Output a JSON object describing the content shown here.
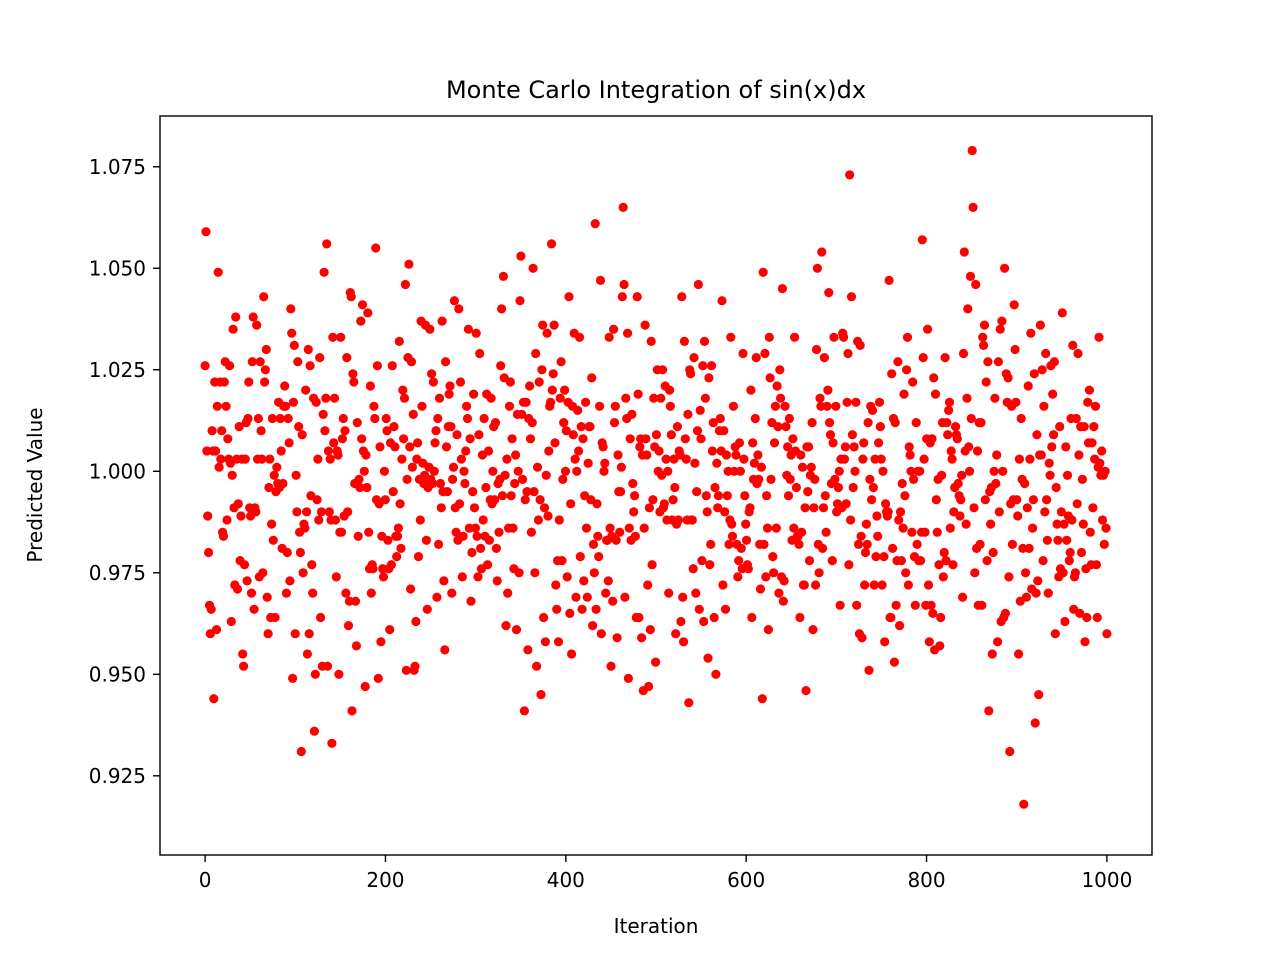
{
  "chart_data": {
    "type": "scatter",
    "title": "Monte Carlo Integration of sin(x)dx",
    "xlabel": "Iteration",
    "ylabel": "Predicted Value",
    "xlim": [
      -50,
      1050
    ],
    "ylim": [
      0.9055,
      1.0875
    ],
    "xticks": [
      0,
      200,
      400,
      600,
      800,
      1000
    ],
    "yticks": [
      0.925,
      0.95,
      0.975,
      1.0,
      1.025,
      1.05,
      1.075
    ],
    "xtick_labels": [
      "0",
      "200",
      "400",
      "600",
      "800",
      "1000"
    ],
    "ytick_labels": [
      "0.925",
      "0.950",
      "0.975",
      "1.000",
      "1.025",
      "1.050",
      "1.075"
    ],
    "grid": false,
    "legend": "none",
    "marker_color": "#ff0000",
    "series": [
      {
        "values": [
          1.026,
          1.059,
          1.005,
          0.989,
          0.98,
          0.967,
          0.96,
          0.966,
          1.01,
          1.005,
          0.944,
          1.022,
          1.005,
          0.961,
          1.016,
          1.049,
          1.001,
          1.022,
          1.003,
          1.01,
          0.985,
          0.984,
          1.022,
          1.027,
          1.016,
          0.988,
          1.008,
          1.003,
          1.026,
          1.002,
          0.963,
          0.999,
          1.035,
          0.991,
          0.972,
          1.038,
          1.003,
          0.971,
          0.992,
          1.011,
          0.978,
          0.989,
          1.003,
          0.955,
          0.952,
          0.977,
          1.003,
          1.012,
          0.973,
          1.013,
          1.022,
          0.991,
          0.989,
          0.97,
          1.027,
          1.038,
          0.966,
          0.991,
          0.99,
          1.036,
          1.003,
          1.013,
          0.974,
          1.027,
          1.01,
          1.003,
          0.975,
          1.043,
          1.022,
          1.025,
          1.03,
          0.969,
          0.96,
          0.996,
          1.003,
          0.964,
          0.987,
          1.013,
          0.983,
          0.999,
          0.964,
          0.995,
          1.001,
          0.997,
          1.017,
          0.996,
          1.013,
          1.005,
          0.981,
          0.997,
          1.016,
          1.021,
          1.016,
          0.97,
          0.98,
          1.013,
          1.007,
          0.973,
          1.04,
          1.034,
          0.949,
          1.017,
          1.031,
          0.96,
          0.999,
          0.99,
          1.027,
          1.011,
          0.985,
          0.98,
          0.931,
          1.009,
          0.975,
          0.987,
          0.986,
          1.02,
          0.99,
          0.955,
          1.03,
          0.96,
          1.026,
          0.994,
          0.977,
          0.97,
          1.018,
          0.936,
          0.95,
          1.017,
          0.993,
          1.003,
          0.988,
          1.028,
          0.964,
          0.99,
          0.952,
          1.014,
          1.049,
          1.01,
          1.018,
          1.056,
          0.952,
          1.005,
          0.99,
          1.003,
          0.988,
          0.933,
          1.033,
          1.007,
          1.018,
          0.988,
          0.974,
          1.005,
          1.004,
          0.95,
          0.985,
          1.033,
          0.985,
          1.008,
          1.013,
          0.989,
          1.01,
          0.97,
          1.028,
          0.99,
          0.962,
          0.968,
          1.044,
          1.043,
          0.941,
          1.024,
          1.022,
          0.997,
          0.968,
          0.957,
          1.012,
          0.984,
          0.998,
          0.996,
          1.037,
          1.008,
          1.041,
          1.005,
          1.0,
          0.947,
          1.004,
          0.996,
          1.039,
          0.985,
          0.976,
          1.021,
          0.97,
          0.977,
          0.976,
          1.016,
          1.013,
          1.055,
          0.993,
          1.026,
          0.949,
          0.992,
          1.006,
          0.958,
          0.984,
          0.976,
          0.974,
          1.0,
          0.993,
          1.013,
          1.01,
          0.983,
          0.976,
          0.961,
          1.007,
          0.977,
          1.026,
          0.995,
          1.011,
          1.006,
          0.984,
          0.979,
          0.984,
          0.986,
          1.032,
          0.992,
          0.981,
          1.003,
          1.02,
          1.008,
          1.018,
          1.046,
          0.951,
          0.998,
          1.028,
          1.051,
          1.006,
          0.971,
          1.027,
          1.001,
          1.014,
          0.951,
          0.952,
          0.963,
          1.003,
          1.007,
          0.979,
          0.998,
          0.988,
          1.037,
          1.016,
          1.002,
          0.997,
          0.999,
          1.036,
          0.983,
          0.966,
          0.996,
          1.001,
          1.035,
          0.998,
          1.024,
          0.997,
          1.022,
          1.0,
          1.007,
          1.01,
          0.969,
          1.013,
          0.982,
          1.018,
          0.997,
          0.991,
          1.037,
          0.995,
          0.973,
          0.956,
          1.027,
          1.006,
          0.995,
          1.011,
          1.019,
          1.021,
          1.011,
          0.97,
          0.998,
          1.001,
          1.042,
          0.991,
          0.985,
          1.009,
          0.983,
          1.04,
          0.992,
          1.022,
          1.003,
          0.974,
          0.984,
          1.0,
          0.997,
          1.005,
          1.016,
          1.013,
          1.035,
          0.986,
          1.008,
          0.968,
          0.98,
          0.995,
          1.019,
          0.991,
          0.986,
          1.034,
          0.984,
          0.974,
          1.009,
          1.029,
          0.981,
          0.976,
          1.004,
          0.988,
          1.013,
          0.984,
          0.996,
          1.019,
          0.977,
          1.005,
          0.983,
          0.993,
          1.018,
          0.992,
          1.0,
          1.011,
          0.993,
          1.012,
          0.981,
          0.973,
          0.997,
          0.985,
          0.998,
          1.026,
          1.04,
          0.994,
          1.048,
          1.023,
          0.999,
          0.962,
          1.003,
          0.97,
          0.986,
          1.016,
          1.022,
          0.994,
          1.008,
          0.986,
          0.976,
          0.997,
          1.004,
          0.961,
          1.014,
          1.0,
          0.975,
          1.042,
          1.053,
          1.014,
          0.998,
          1.017,
          0.941,
          0.993,
          1.017,
          0.995,
          0.956,
          1.013,
          1.021,
          1.008,
          0.985,
          1.012,
          1.05,
          0.995,
          0.975,
          1.029,
          0.952,
          1.001,
          0.988,
          1.022,
          0.993,
          0.945,
          1.025,
          1.036,
          0.964,
          0.991,
          0.958,
          0.999,
          1.034,
          0.989,
          1.005,
          1.016,
          1.017,
          1.056,
          1.02,
          1.024,
          1.036,
          1.007,
          0.972,
          0.966,
          0.978,
          0.958,
          0.988,
          1.018,
          1.027,
          0.978,
          0.998,
          1.012,
          1.02,
          1.0,
          1.01,
          0.974,
          1.017,
          1.043,
          0.965,
          0.992,
          0.955,
          1.016,
          1.009,
          1.034,
          1.003,
          0.969,
          1.0,
          1.015,
          1.005,
          1.033,
          0.979,
          1.011,
          0.966,
          1.008,
          0.973,
          0.994,
          1.017,
          0.986,
          0.969,
          1.002,
          1.011,
          1.011,
          0.993,
          1.023,
          0.962,
          0.982,
          0.975,
          1.061,
          0.966,
          0.992,
          0.984,
          0.979,
          1.016,
          1.047,
          0.96,
          1.007,
          1.006,
          1.0,
          1.002,
          0.97,
          0.983,
          0.983,
          0.973,
          1.033,
          0.986,
          0.952,
          0.984,
          0.968,
          1.035,
          1.012,
          1.016,
          0.983,
          0.959,
          1.004,
          0.995,
          0.985,
          0.995,
          1.001,
          1.043,
          1.065,
          1.046,
          0.969,
          1.018,
          1.013,
          1.034,
          0.949,
          0.986,
          1.008,
          0.983,
          1.014,
          0.997,
          0.99,
          0.994,
          0.984,
          0.964,
          1.043,
          1.019,
          0.964,
          1.006,
          1.008,
          0.959,
          1.004,
          0.946,
          0.986,
          1.036,
          1.008,
          1.004,
          0.972,
          0.947,
          0.991,
          0.961,
          1.032,
          0.977,
          0.993,
          1.018,
          1.006,
          0.953,
          1.009,
          1.025,
          1.0,
          1.005,
          0.99,
          1.018,
          0.999,
          1.025,
          0.991,
          0.992,
          1.021,
          1.003,
          0.988,
          1.0,
          0.97,
          1.02,
          1.016,
          1.009,
          0.988,
          0.993,
          1.003,
          0.996,
          0.96,
          0.987,
          1.011,
          0.988,
          1.005,
          1.004,
          0.963,
          1.043,
          0.969,
          0.958,
          1.032,
          1.008,
          1.003,
          0.988,
          1.014,
          0.943,
          1.025,
          1.024,
          0.988,
          0.988,
          0.976,
          1.028,
          1.002,
          0.97,
          0.995,
          1.01,
          1.046,
          0.966,
          1.015,
          1.008,
          0.978,
          1.026,
          0.963,
          1.032,
          1.018,
          0.994,
          0.99,
          0.954,
          1.023,
          0.977,
          0.982,
          1.026,
          1.005,
          1.012,
          0.964,
          0.996,
          0.95,
          1.002,
          0.991,
          0.994,
          1.01,
          1.013,
          1.005,
          1.042,
          0.972,
          1.01,
          0.99,
          0.966,
          1.004,
          0.994,
          1.0,
          0.982,
          0.988,
          1.033,
          0.987,
          0.984,
          1.016,
          1.0,
          1.006,
          1.004,
          0.982,
          0.974,
          0.978,
          1.007,
          1.0,
          0.981,
          0.976,
          1.029,
          1.003,
          0.994,
          0.987,
          0.983,
          0.977,
          0.976,
          0.99,
          0.991,
          1.02,
          0.964,
          1.007,
          0.998,
          1.002,
          1.013,
          1.028,
          0.997,
          1.004,
          0.998,
          0.982,
          0.971,
          1.001,
          0.944,
          1.049,
          0.982,
          1.029,
          0.974,
          0.994,
          0.986,
          0.961,
          1.033,
          1.023,
          0.998,
          1.012,
          0.979,
          0.975,
          1.007,
          1.016,
          0.986,
          1.021,
          1.011,
          0.97,
          1.025,
          1.018,
          0.974,
          1.045,
          0.968,
          0.973,
          1.016,
          1.011,
          0.999,
          1.006,
          0.994,
          1.013,
          0.998,
          1.004,
          0.983,
          1.008,
          0.986,
          1.033,
          1.005,
          0.996,
          0.984,
          0.984,
          0.982,
          0.964,
          1.004,
          0.985,
          1.001,
          0.972,
          0.972,
          0.991,
          0.946,
          1.006,
          0.995,
          1.006,
          0.978,
          0.999,
          1.001,
          1.012,
          0.961,
          0.991,
          0.998,
          0.972,
          1.03,
          1.05,
          0.982,
          0.975,
          1.018,
          1.016,
          1.054,
          0.981,
          0.991,
          1.028,
          0.994,
          0.985,
          1.016,
          1.02,
          1.044,
          1.012,
          1.009,
          0.997,
          0.978,
          1.007,
          1.033,
          0.998,
          1.016,
          0.99,
          0.992,
          0.996,
          1.0,
          0.967,
          1.003,
          0.991,
          1.034,
          1.033,
          1.003,
          1.006,
          0.992,
          1.017,
          1.029,
          0.977,
          1.073,
          0.988,
          1.043,
          1.009,
          0.996,
          1.006,
          1.0,
          1.017,
          0.967,
          1.032,
          0.982,
          0.96,
          1.031,
          0.984,
          0.959,
          1.003,
          1.007,
          0.972,
          0.98,
          0.987,
          0.982,
          1.012,
          0.951,
          0.998,
          1.016,
          0.993,
          1.015,
          0.996,
          0.972,
          1.003,
          0.979,
          0.989,
          0.984,
          1.007,
          1.017,
          1.011,
          1.003,
          0.972,
          1.0,
          0.979,
          0.958,
          0.992,
          0.99,
          0.989,
          0.99,
          1.047,
          0.964,
          0.964,
          1.024,
          0.981,
          1.013,
          0.953,
          1.012,
          0.967,
          0.978,
          1.027,
          0.988,
          0.962,
          0.99,
          0.978,
          0.997,
          0.986,
          1.019,
          0.994,
          0.975,
          1.025,
          1.033,
          0.972,
          1.006,
          1.004,
          1.0,
          0.985,
          1.022,
          0.998,
          0.979,
          0.967,
          1.012,
          0.982,
          1.0,
          0.978,
          1.0,
          0.978,
          0.985,
          1.057,
          1.028,
          1.003,
          0.985,
          0.967,
          1.008,
          1.035,
          0.972,
          0.958,
          1.007,
          0.967,
          1.008,
          0.965,
          1.023,
          0.956,
          1.019,
          0.993,
          0.985,
          0.998,
          0.977,
          0.957,
          0.964,
          0.999,
          1.012,
          0.974,
          0.98,
          1.028,
          0.978,
          1.012,
          1.009,
          1.015,
          1.017,
          0.986,
          1.005,
          1.003,
          0.977,
          0.99,
          0.996,
          1.011,
          1.009,
          1.008,
          0.997,
          0.994,
          0.989,
          0.993,
          0.999,
          0.969,
          1.029,
          1.054,
          1.005,
          0.987,
          1.018,
          1.04,
          1.006,
          1.0,
          1.048,
          1.013,
          1.079,
          1.065,
          0.991,
          0.975,
          1.046,
          0.981,
          1.005,
          0.967,
          1.012,
          0.982,
          1.012,
          0.967,
          1.033,
          1.031,
          1.036,
          0.993,
          1.022,
          0.978,
          1.027,
          0.941,
          0.995,
          0.987,
          0.996,
          0.955,
          0.98,
          1.0,
          1.018,
          0.997,
          1.004,
          0.958,
          1.027,
          0.99,
          1.035,
          0.963,
          1.037,
          1.0,
          0.964,
          1.05,
          0.965,
          1.024,
          1.017,
          1.023,
          0.974,
          0.931,
          0.992,
          1.016,
          0.982,
          0.993,
          1.041,
          1.03,
          1.017,
          0.993,
          0.989,
          0.955,
          1.003,
          0.968,
          1.013,
          0.998,
          0.981,
          0.918,
          0.997,
          0.975,
          0.969,
          0.991,
          1.021,
          0.981,
          1.003,
          1.034,
          0.971,
          0.986,
          0.993,
          1.024,
          0.938,
          0.97,
          1.009,
          0.973,
          0.945,
          1.004,
          1.036,
          1.004,
          1.025,
          0.978,
          1.016,
          0.99,
          1.029,
          0.993,
          0.983,
          0.97,
          1.002,
          0.999,
          1.026,
          1.006,
          1.019,
          1.009,
          1.027,
          0.96,
          0.996,
          0.987,
          0.983,
          0.974,
          1.011,
          0.976,
          0.99,
          1.039,
          0.975,
          0.987,
          0.963,
          1.006,
          0.983,
          0.999,
          0.989,
          0.978,
          0.98,
          1.013,
          0.988,
          1.031,
          0.966,
          0.974,
          0.975,
          1.013,
          0.992,
          1.029,
          1.004,
          0.965,
          1.011,
          0.98,
          0.998,
          0.987,
          1.011,
          0.958,
          0.976,
          0.964,
          1.017,
          1.007,
          1.02,
          0.985,
          0.977,
          1.007,
          0.991,
          1.011,
          1.003,
          1.016,
          0.977,
          0.964,
          1.001,
          1.033,
          1.002,
          0.999,
          1.005,
          0.988,
          0.999,
          0.982,
          1.0,
          0.986,
          0.96
        ]
      }
    ]
  }
}
